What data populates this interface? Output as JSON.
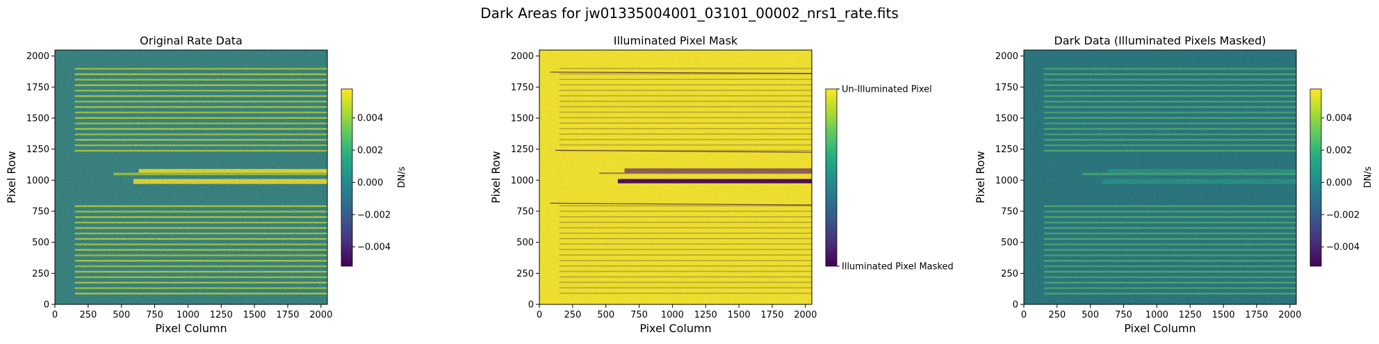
{
  "figure": {
    "suptitle": "Dark Areas for jw01335004001_03101_00002_nrs1_rate.fits"
  },
  "chart_data": [
    {
      "type": "heatmap",
      "title": "Original Rate Data",
      "xlabel": "Pixel Column",
      "ylabel": "Pixel Row",
      "xlim": [
        0,
        2048
      ],
      "ylim": [
        0,
        2048
      ],
      "xticks": [
        0,
        250,
        500,
        750,
        1000,
        1250,
        1500,
        1750,
        2000
      ],
      "yticks": [
        0,
        250,
        500,
        750,
        1000,
        1250,
        1500,
        1750,
        2000
      ],
      "colormap": "viridis",
      "colorbar": {
        "label": "DN/s",
        "range": [
          -0.0052,
          0.0058
        ],
        "ticks": [
          -0.004,
          -0.002,
          0.0,
          0.002,
          0.004
        ],
        "tick_labels": [
          "−0.004",
          "−0.002",
          "0.000",
          "0.002",
          "0.004"
        ]
      }
    },
    {
      "type": "heatmap",
      "title": "Illuminated Pixel Mask",
      "xlabel": "Pixel Column",
      "ylabel": "Pixel Row",
      "xlim": [
        0,
        2048
      ],
      "ylim": [
        0,
        2048
      ],
      "xticks": [
        0,
        250,
        500,
        750,
        1000,
        1250,
        1500,
        1750,
        2000
      ],
      "yticks": [
        0,
        250,
        500,
        750,
        1000,
        1250,
        1500,
        1750,
        2000
      ],
      "colormap": "viridis",
      "colorbar": {
        "label": "",
        "range": [
          0,
          1
        ],
        "ticks": [
          0,
          1
        ],
        "tick_labels": [
          "Illuminated Pixel Masked",
          "Un-Illuminated Pixel"
        ]
      }
    },
    {
      "type": "heatmap",
      "title": "Dark Data (Illuminated Pixels Masked)",
      "xlabel": "Pixel Column",
      "ylabel": "Pixel Row",
      "xlim": [
        0,
        2048
      ],
      "ylim": [
        0,
        2048
      ],
      "xticks": [
        0,
        250,
        500,
        750,
        1000,
        1250,
        1500,
        1750,
        2000
      ],
      "yticks": [
        0,
        250,
        500,
        750,
        1000,
        1250,
        1500,
        1750,
        2000
      ],
      "colormap": "viridis",
      "colorbar": {
        "label": "DN/s",
        "range": [
          -0.0052,
          0.0058
        ],
        "ticks": [
          -0.004,
          -0.002,
          0.0,
          0.002,
          0.004
        ],
        "tick_labels": [
          "−0.004",
          "−0.002",
          "0.000",
          "0.002",
          "0.004"
        ]
      }
    }
  ]
}
